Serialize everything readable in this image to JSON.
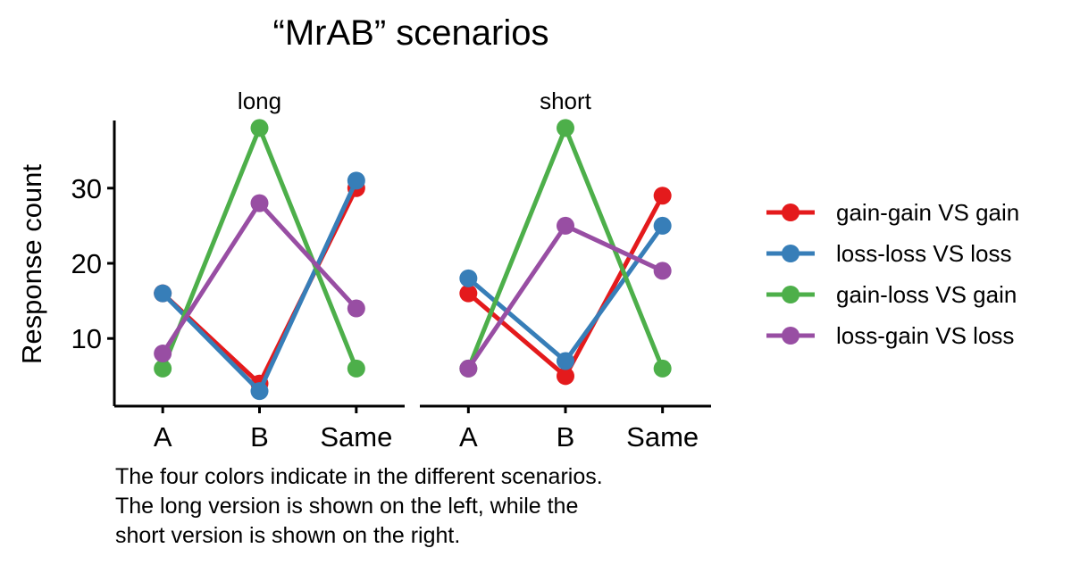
{
  "chart_data": {
    "type": "line",
    "title": "“MrAB” scenarios",
    "ylabel": "Response count",
    "xlabel": "",
    "categories": [
      "A",
      "B",
      "Same"
    ],
    "yticks": [
      10,
      20,
      30
    ],
    "ylim": [
      1,
      39
    ],
    "grid": false,
    "legend_position": "right",
    "caption": [
      "The four colors indicate in the different scenarios.",
      "The long version is shown on the left, while the",
      "short version is shown on the right."
    ],
    "series_meta": [
      {
        "name": "gain-gain VS gain",
        "color": "#e41a1c"
      },
      {
        "name": "loss-loss VS loss",
        "color": "#377eb8"
      },
      {
        "name": "gain-loss VS gain",
        "color": "#4daf4a"
      },
      {
        "name": "loss-gain VS loss",
        "color": "#984ea3"
      }
    ],
    "panels": [
      {
        "label": "long",
        "series": [
          {
            "name": "gain-gain VS gain",
            "values": [
              16,
              4,
              30
            ]
          },
          {
            "name": "loss-loss VS loss",
            "values": [
              16,
              3,
              31
            ]
          },
          {
            "name": "gain-loss VS gain",
            "values": [
              6,
              38,
              6
            ]
          },
          {
            "name": "loss-gain VS loss",
            "values": [
              8,
              28,
              14
            ]
          }
        ]
      },
      {
        "label": "short",
        "series": [
          {
            "name": "gain-gain VS gain",
            "values": [
              16,
              5,
              29
            ]
          },
          {
            "name": "loss-loss VS loss",
            "values": [
              18,
              7,
              25
            ]
          },
          {
            "name": "gain-loss VS gain",
            "values": [
              6,
              38,
              6
            ]
          },
          {
            "name": "loss-gain VS loss",
            "values": [
              6,
              25,
              19
            ]
          }
        ]
      }
    ]
  }
}
